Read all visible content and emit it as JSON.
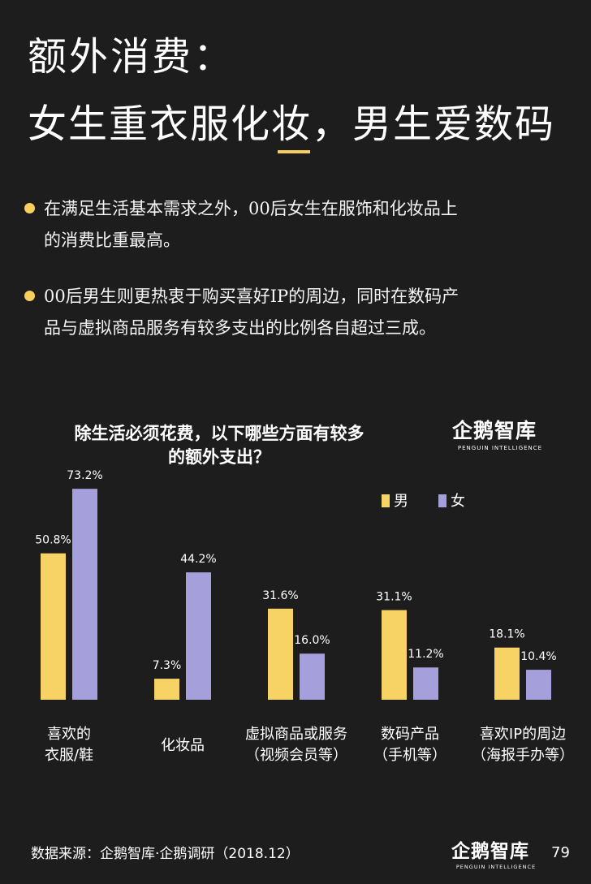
{
  "heading": {
    "line1": "额外消费：",
    "line2": "女生重衣服化妆，男生爱数码"
  },
  "bullets": [
    {
      "lines": [
        "在满足生活基本需求之外，00后女生在服饰和化妆品上",
        "的消费比重最高。"
      ]
    },
    {
      "lines": [
        "00后男生则更热衷于购买喜好IP的周边，同时在数码产",
        "品与虚拟商品服务有较多支出的比例各自超过三成。"
      ]
    }
  ],
  "brand": {
    "name": "企鹅智库",
    "tagline": "PENGUIN INTELLIGENCE"
  },
  "colors": {
    "accent": "#f7cf5d",
    "male": "#f7d366",
    "female": "#a59fdc",
    "background": "#1d1d1d"
  },
  "chart_data": {
    "type": "bar",
    "title_lines": [
      "除生活必须花费，以下哪些方面有较多",
      "的额外支出？"
    ],
    "categories": [
      [
        "喜欢的",
        "衣服/鞋"
      ],
      [
        "化妆品"
      ],
      [
        "虚拟商品或服务",
        "（视频会员等）"
      ],
      [
        "数码产品",
        "（手机等）"
      ],
      [
        "喜欢IP的周边",
        "（海报手办等）"
      ]
    ],
    "series": [
      {
        "name": "男",
        "values": [
          50.8,
          7.3,
          31.6,
          31.1,
          18.1
        ],
        "labels": [
          "50.8%",
          "7.3%",
          "31.6%",
          "31.1%",
          "18.1%"
        ]
      },
      {
        "name": "女",
        "values": [
          73.2,
          44.2,
          16.0,
          11.2,
          10.4
        ],
        "labels": [
          "73.2%",
          "44.2%",
          "16.0%",
          "11.2%",
          "10.4%"
        ]
      }
    ],
    "unit": "%",
    "ylim": [
      0,
      100
    ],
    "legend_position": "top-right",
    "grid": false
  },
  "footer": {
    "source": "数据来源：企鹅智库·企鹅调研（2018.12）",
    "page_number": "79"
  }
}
